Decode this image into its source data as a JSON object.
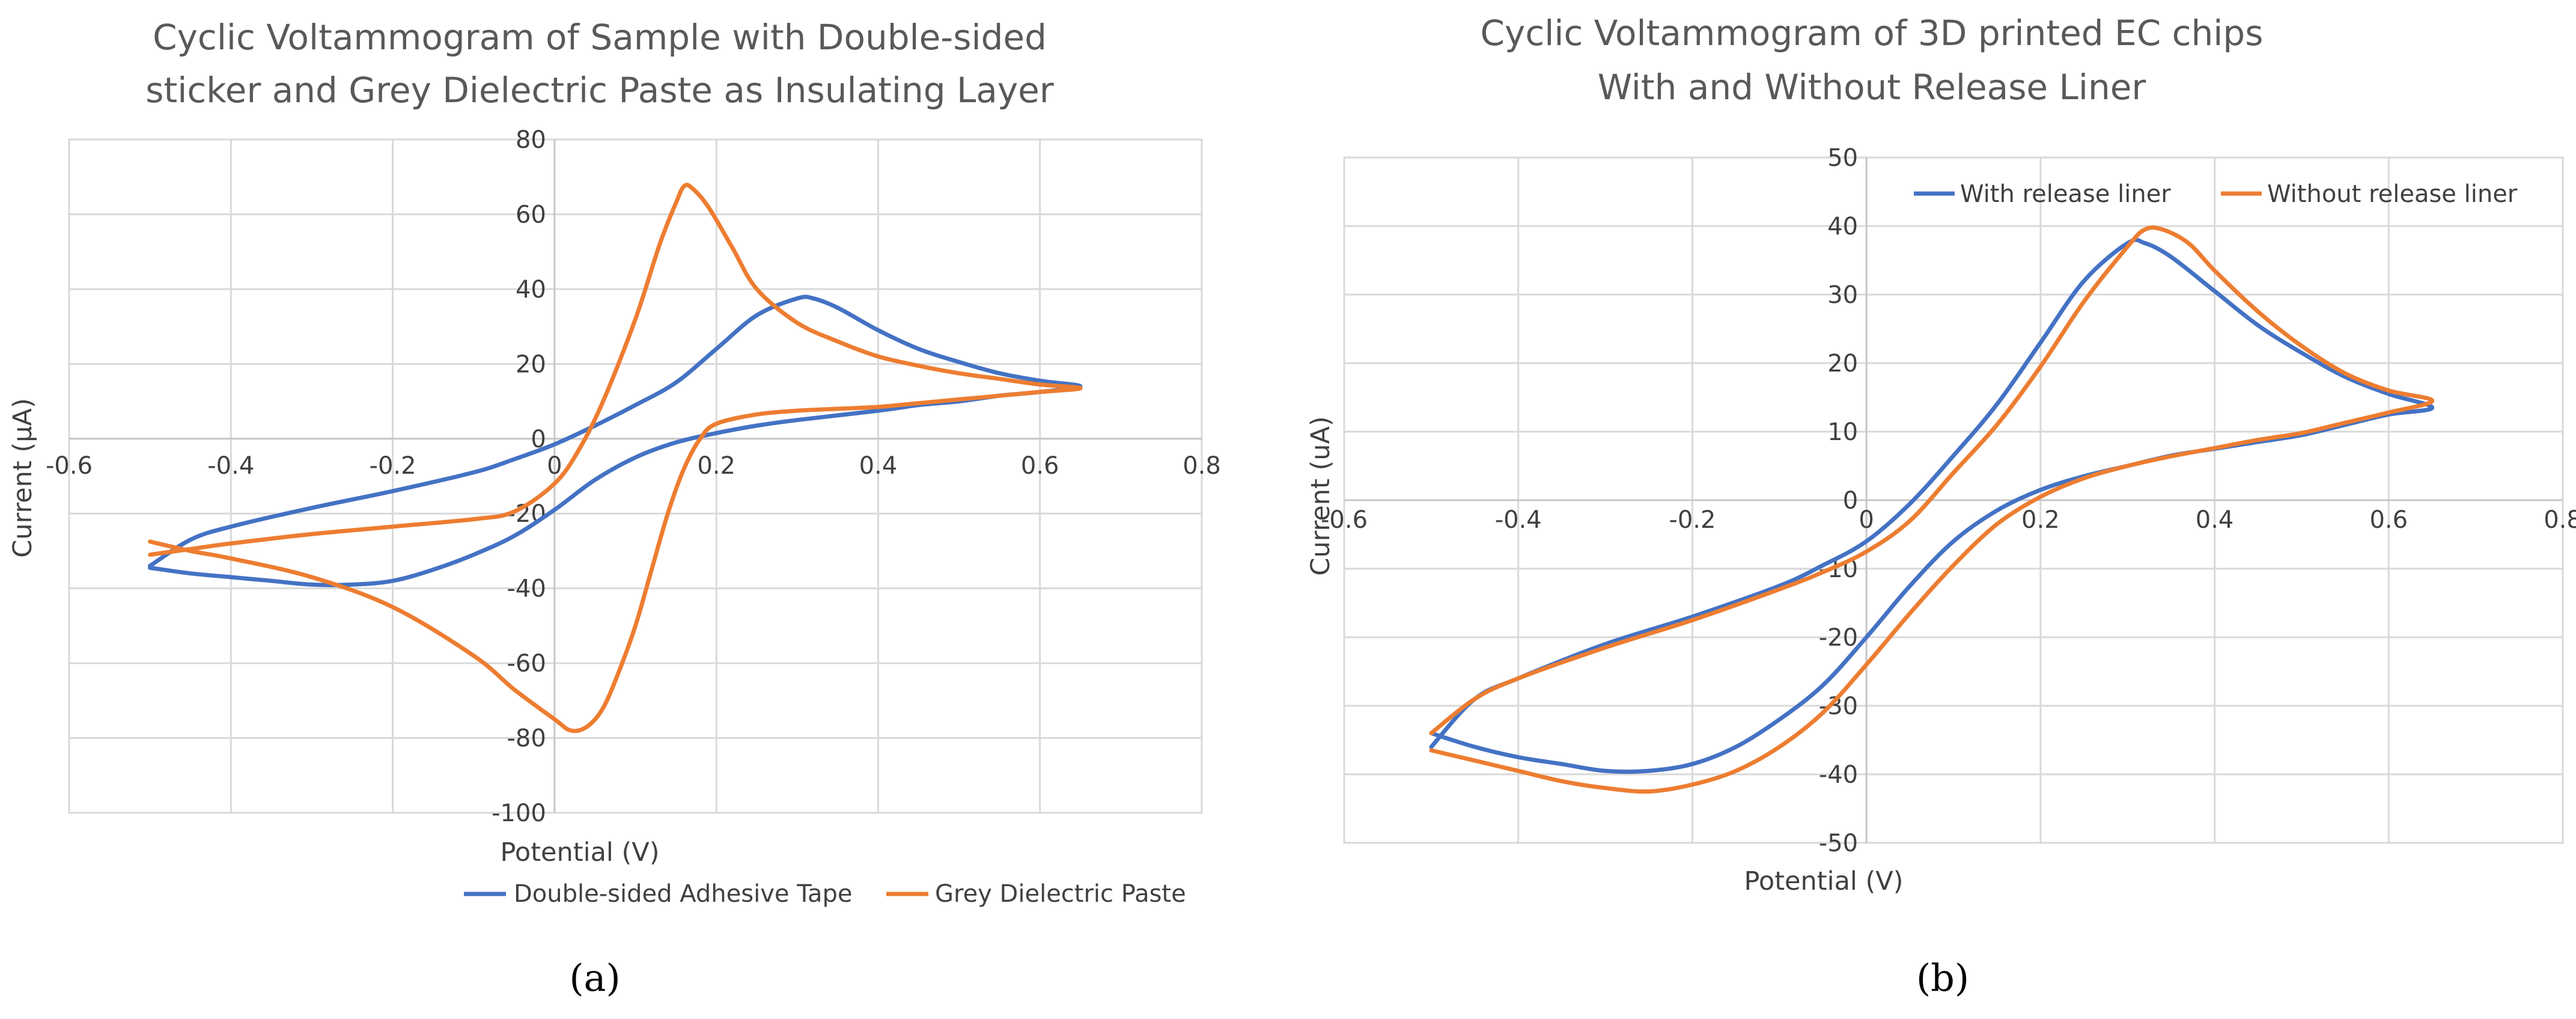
{
  "chart_data": [
    {
      "type": "line",
      "title_lines": [
        "Cyclic Voltammogram of Sample with Double-sided",
        "sticker and Grey Dielectric Paste as Insulating Layer"
      ],
      "xlabel": "Potential (V)",
      "ylabel": "Current (μA)",
      "xlim": [
        -0.6,
        0.8
      ],
      "ylim": [
        -100,
        80
      ],
      "xticks": [
        -0.6,
        -0.4,
        -0.2,
        0,
        0.2,
        0.4,
        0.6,
        0.8
      ],
      "yticks": [
        80,
        60,
        40,
        20,
        0,
        -20,
        -40,
        -60,
        -80,
        -100
      ],
      "legend_position": "bottom",
      "caption": "(a)",
      "series": [
        {
          "name": "Double-sided Adhesive Tape",
          "color": "#4472C4",
          "points": [
            [
              -0.5,
              -34
            ],
            [
              -0.45,
              -27
            ],
            [
              -0.4,
              -23.5
            ],
            [
              -0.3,
              -18.5
            ],
            [
              -0.2,
              -14
            ],
            [
              -0.1,
              -9
            ],
            [
              -0.05,
              -5.5
            ],
            [
              0.0,
              -1.5
            ],
            [
              0.05,
              3.5
            ],
            [
              0.1,
              9
            ],
            [
              0.15,
              15
            ],
            [
              0.2,
              24
            ],
            [
              0.25,
              33
            ],
            [
              0.3,
              37.5
            ],
            [
              0.32,
              37.5
            ],
            [
              0.35,
              35
            ],
            [
              0.4,
              29
            ],
            [
              0.45,
              24
            ],
            [
              0.5,
              20.5
            ],
            [
              0.55,
              17.5
            ],
            [
              0.6,
              15.5
            ],
            [
              0.65,
              14
            ],
            [
              0.6,
              12.5
            ],
            [
              0.55,
              11.5
            ],
            [
              0.5,
              10
            ],
            [
              0.45,
              9
            ],
            [
              0.4,
              7.5
            ],
            [
              0.3,
              5
            ],
            [
              0.25,
              3.5
            ],
            [
              0.2,
              1.5
            ],
            [
              0.15,
              -1
            ],
            [
              0.1,
              -5
            ],
            [
              0.05,
              -11
            ],
            [
              0.0,
              -19
            ],
            [
              -0.05,
              -26
            ],
            [
              -0.1,
              -31
            ],
            [
              -0.15,
              -35
            ],
            [
              -0.2,
              -38
            ],
            [
              -0.25,
              -39
            ],
            [
              -0.3,
              -39
            ],
            [
              -0.35,
              -38
            ],
            [
              -0.4,
              -37
            ],
            [
              -0.45,
              -36
            ],
            [
              -0.5,
              -34.5
            ]
          ]
        },
        {
          "name": "Grey Dielectric Paste",
          "color": "#ED7D31",
          "points": [
            [
              -0.5,
              -31
            ],
            [
              -0.45,
              -29.5
            ],
            [
              -0.4,
              -28
            ],
            [
              -0.3,
              -25.5
            ],
            [
              -0.2,
              -23.5
            ],
            [
              -0.1,
              -21.5
            ],
            [
              -0.05,
              -19.5
            ],
            [
              0.0,
              -12
            ],
            [
              0.03,
              -3
            ],
            [
              0.06,
              10
            ],
            [
              0.1,
              32
            ],
            [
              0.13,
              52
            ],
            [
              0.15,
              63
            ],
            [
              0.16,
              67.5
            ],
            [
              0.17,
              67
            ],
            [
              0.19,
              62
            ],
            [
              0.22,
              51
            ],
            [
              0.25,
              40
            ],
            [
              0.3,
              31
            ],
            [
              0.35,
              26
            ],
            [
              0.4,
              22
            ],
            [
              0.45,
              19.5
            ],
            [
              0.5,
              17.5
            ],
            [
              0.55,
              16
            ],
            [
              0.6,
              14.5
            ],
            [
              0.65,
              13.5
            ],
            [
              0.6,
              12.5
            ],
            [
              0.55,
              11.5
            ],
            [
              0.5,
              10.5
            ],
            [
              0.45,
              9.5
            ],
            [
              0.4,
              8.5
            ],
            [
              0.35,
              8
            ],
            [
              0.3,
              7.5
            ],
            [
              0.25,
              6.5
            ],
            [
              0.2,
              4
            ],
            [
              0.18,
              0
            ],
            [
              0.16,
              -8
            ],
            [
              0.14,
              -20
            ],
            [
              0.12,
              -35
            ],
            [
              0.1,
              -50
            ],
            [
              0.08,
              -62
            ],
            [
              0.06,
              -72
            ],
            [
              0.04,
              -77
            ],
            [
              0.02,
              -78
            ],
            [
              0.0,
              -75
            ],
            [
              -0.05,
              -67
            ],
            [
              -0.1,
              -58
            ],
            [
              -0.2,
              -45
            ],
            [
              -0.3,
              -37
            ],
            [
              -0.4,
              -32
            ],
            [
              -0.45,
              -30
            ],
            [
              -0.5,
              -27.5
            ]
          ]
        }
      ]
    },
    {
      "type": "line",
      "title_lines": [
        "Cyclic Voltammogram  of 3D printed EC chips",
        "With and Without Release Liner"
      ],
      "xlabel": "Potential (V)",
      "ylabel": "Current (uA)",
      "xlim": [
        -0.6,
        0.8
      ],
      "ylim": [
        -50,
        50
      ],
      "xticks": [
        -0.6,
        -0.4,
        -0.2,
        0,
        0.2,
        0.4,
        0.6,
        0.8
      ],
      "yticks": [
        50,
        40,
        30,
        20,
        10,
        0,
        -10,
        -20,
        -30,
        -40,
        -50
      ],
      "legend_position": "top",
      "caption": "(b)",
      "series": [
        {
          "name": "With release liner",
          "color": "#4472C4",
          "points": [
            [
              -0.5,
              -36
            ],
            [
              -0.45,
              -29
            ],
            [
              -0.4,
              -26
            ],
            [
              -0.3,
              -21
            ],
            [
              -0.2,
              -17
            ],
            [
              -0.1,
              -12.5
            ],
            [
              -0.05,
              -9.5
            ],
            [
              0.0,
              -6
            ],
            [
              0.05,
              -0.5
            ],
            [
              0.1,
              6.5
            ],
            [
              0.15,
              14
            ],
            [
              0.2,
              23
            ],
            [
              0.25,
              32
            ],
            [
              0.3,
              37.5
            ],
            [
              0.32,
              37.5
            ],
            [
              0.35,
              35.5
            ],
            [
              0.4,
              30.5
            ],
            [
              0.45,
              25.5
            ],
            [
              0.5,
              21.5
            ],
            [
              0.55,
              18
            ],
            [
              0.6,
              15.5
            ],
            [
              0.65,
              13.5
            ],
            [
              0.6,
              12.5
            ],
            [
              0.55,
              11
            ],
            [
              0.5,
              9.5
            ],
            [
              0.45,
              8.5
            ],
            [
              0.4,
              7.5
            ],
            [
              0.35,
              6.5
            ],
            [
              0.3,
              5
            ],
            [
              0.25,
              3.5
            ],
            [
              0.2,
              1.5
            ],
            [
              0.15,
              -1.5
            ],
            [
              0.1,
              -6
            ],
            [
              0.05,
              -12.5
            ],
            [
              0.0,
              -20
            ],
            [
              -0.05,
              -27
            ],
            [
              -0.1,
              -32
            ],
            [
              -0.15,
              -36
            ],
            [
              -0.2,
              -38.5
            ],
            [
              -0.25,
              -39.5
            ],
            [
              -0.3,
              -39.5
            ],
            [
              -0.35,
              -38.5
            ],
            [
              -0.4,
              -37.5
            ],
            [
              -0.45,
              -36
            ],
            [
              -0.5,
              -34
            ]
          ]
        },
        {
          "name": "Without release liner",
          "color": "#ED7D31",
          "points": [
            [
              -0.5,
              -34
            ],
            [
              -0.45,
              -29
            ],
            [
              -0.4,
              -26
            ],
            [
              -0.3,
              -21.5
            ],
            [
              -0.2,
              -17.5
            ],
            [
              -0.1,
              -13
            ],
            [
              -0.05,
              -10.5
            ],
            [
              0.0,
              -7.5
            ],
            [
              0.05,
              -3
            ],
            [
              0.1,
              4
            ],
            [
              0.15,
              11
            ],
            [
              0.2,
              19.5
            ],
            [
              0.25,
              29
            ],
            [
              0.3,
              37
            ],
            [
              0.32,
              39.5
            ],
            [
              0.34,
              39.5
            ],
            [
              0.37,
              37.5
            ],
            [
              0.4,
              33.5
            ],
            [
              0.45,
              27.5
            ],
            [
              0.5,
              22.5
            ],
            [
              0.55,
              18.5
            ],
            [
              0.6,
              16
            ],
            [
              0.65,
              14.5
            ],
            [
              0.6,
              12.8
            ],
            [
              0.55,
              11.3
            ],
            [
              0.5,
              9.8
            ],
            [
              0.45,
              8.8
            ],
            [
              0.4,
              7.6
            ],
            [
              0.35,
              6.4
            ],
            [
              0.3,
              5
            ],
            [
              0.25,
              3.2
            ],
            [
              0.2,
              0.5
            ],
            [
              0.15,
              -3.5
            ],
            [
              0.1,
              -9.5
            ],
            [
              0.05,
              -16.5
            ],
            [
              0.0,
              -24
            ],
            [
              -0.05,
              -31
            ],
            [
              -0.1,
              -36
            ],
            [
              -0.15,
              -39.5
            ],
            [
              -0.2,
              -41.5
            ],
            [
              -0.25,
              -42.5
            ],
            [
              -0.3,
              -42
            ],
            [
              -0.35,
              -41
            ],
            [
              -0.4,
              -39.5
            ],
            [
              -0.45,
              -38
            ],
            [
              -0.5,
              -36.5
            ]
          ]
        }
      ]
    }
  ]
}
